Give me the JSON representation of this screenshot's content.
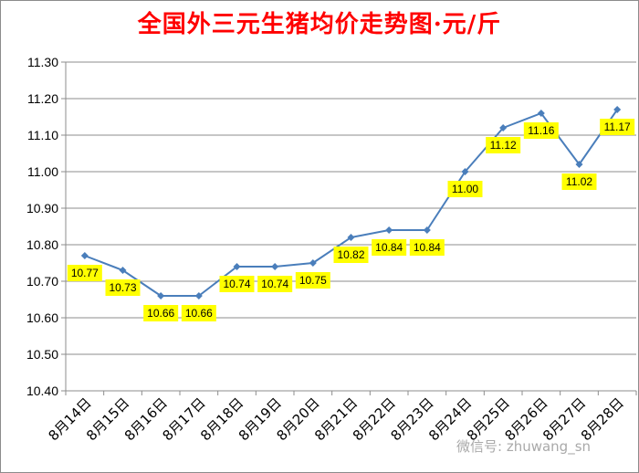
{
  "chart_data": {
    "type": "line",
    "title": "全国外三元生猪均价走势图·元/斤",
    "categories": [
      "8月14日",
      "8月15日",
      "8月16日",
      "8月17日",
      "8月18日",
      "8月19日",
      "8月20日",
      "8月21日",
      "8月22日",
      "8月23日",
      "8月24日",
      "8月25日",
      "8月26日",
      "8月27日",
      "8月28日"
    ],
    "values": [
      10.77,
      10.73,
      10.66,
      10.66,
      10.74,
      10.74,
      10.75,
      10.82,
      10.84,
      10.84,
      11.0,
      11.12,
      11.16,
      11.02,
      11.17
    ],
    "value_labels": [
      "10.77",
      "10.73",
      "10.66",
      "10.66",
      "10.74",
      "10.74",
      "10.75",
      "10.82",
      "10.84",
      "10.84",
      "11.00",
      "11.12",
      "11.16",
      "11.02",
      "11.17"
    ],
    "ylim": [
      10.4,
      11.3
    ],
    "yticks": [
      10.4,
      10.5,
      10.6,
      10.7,
      10.8,
      10.9,
      11.0,
      11.1,
      11.2,
      11.3
    ],
    "ytick_labels": [
      "10.40",
      "10.50",
      "10.60",
      "10.70",
      "10.80",
      "10.90",
      "11.00",
      "11.10",
      "11.20",
      "11.30"
    ],
    "grid": true,
    "colors": {
      "line": "#4a7ebb",
      "label_bg": "#ffff00",
      "title": "#ff0000"
    },
    "xlabel": "",
    "ylabel": ""
  },
  "watermark": "微信号: zhuwang_sn"
}
